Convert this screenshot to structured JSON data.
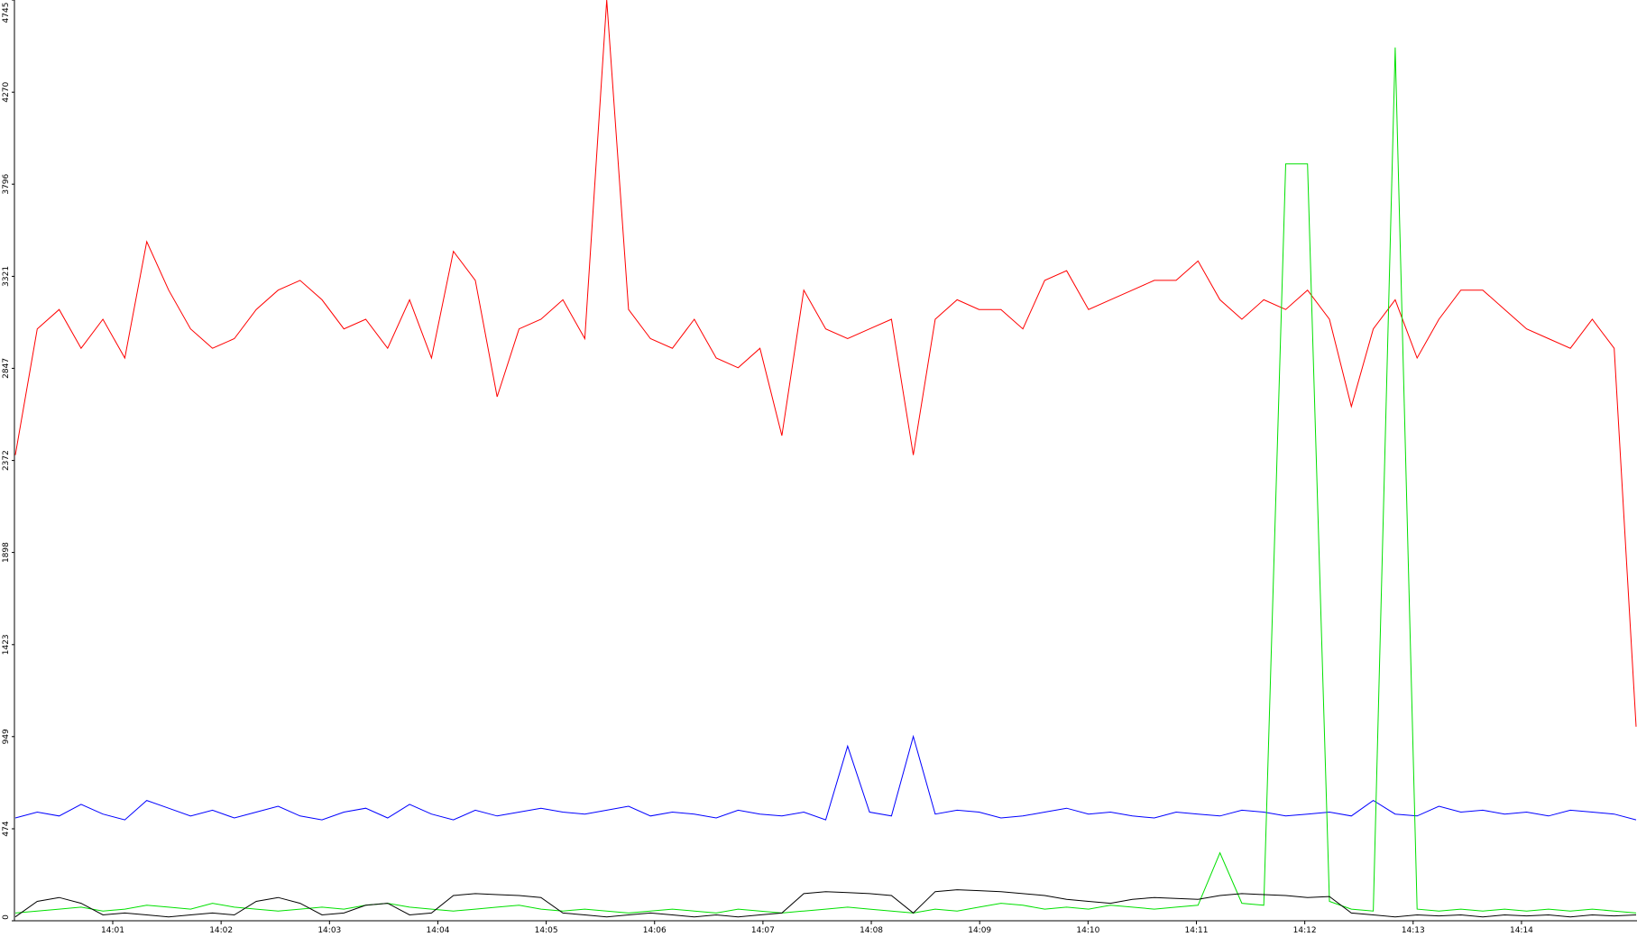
{
  "chart_data": {
    "type": "line",
    "ylim": [
      0,
      4745
    ],
    "yticks": [
      0,
      474,
      949,
      1423,
      1898,
      2372,
      2847,
      3321,
      3796,
      4270,
      4745
    ],
    "xticks": [
      "14:01",
      "14:02",
      "14:03",
      "14:04",
      "14:05",
      "14:06",
      "14:07",
      "14:08",
      "14:09",
      "14:10",
      "14:11",
      "14:12",
      "14:13",
      "14:14"
    ],
    "grid": false,
    "series": [
      {
        "color": "#ff0000",
        "values": [
          2400,
          3050,
          3150,
          2950,
          3100,
          2900,
          3500,
          3250,
          3050,
          2950,
          3000,
          3150,
          3250,
          3300,
          3200,
          3050,
          3100,
          2950,
          3200,
          2900,
          3450,
          3300,
          2700,
          3050,
          3100,
          3200,
          3000,
          4745,
          3150,
          3000,
          2950,
          3100,
          2900,
          2850,
          2950,
          2500,
          3250,
          3050,
          3000,
          3050,
          3100,
          2400,
          3100,
          3200,
          3150,
          3150,
          3050,
          3300,
          3350,
          3150,
          3200,
          3250,
          3300,
          3300,
          3400,
          3200,
          3100,
          3200,
          3150,
          3250,
          3100,
          2650,
          3050,
          3200,
          2900,
          3100,
          3250,
          3250,
          3150,
          3050,
          3000,
          2950,
          3100,
          2950,
          1000
        ]
      },
      {
        "color": "#0000ff",
        "values": [
          530,
          560,
          540,
          600,
          550,
          520,
          620,
          580,
          540,
          570,
          530,
          560,
          590,
          540,
          520,
          560,
          580,
          530,
          600,
          550,
          520,
          570,
          540,
          560,
          580,
          560,
          550,
          570,
          590,
          540,
          560,
          550,
          530,
          570,
          550,
          540,
          560,
          520,
          900,
          560,
          540,
          950,
          550,
          570,
          560,
          530,
          540,
          560,
          580,
          550,
          560,
          540,
          530,
          560,
          550,
          540,
          570,
          560,
          540,
          550,
          560,
          540,
          620,
          550,
          540,
          590,
          560,
          570,
          550,
          560,
          540,
          570,
          560,
          550,
          520
        ]
      },
      {
        "color": "#00e000",
        "values": [
          40,
          50,
          60,
          70,
          50,
          60,
          80,
          70,
          60,
          90,
          70,
          60,
          50,
          60,
          70,
          60,
          80,
          90,
          70,
          60,
          50,
          60,
          70,
          80,
          60,
          50,
          60,
          50,
          40,
          50,
          60,
          50,
          40,
          60,
          50,
          40,
          50,
          60,
          70,
          60,
          50,
          40,
          60,
          50,
          70,
          90,
          80,
          60,
          70,
          60,
          80,
          70,
          60,
          70,
          80,
          350,
          90,
          80,
          3900,
          3900,
          100,
          60,
          50,
          4500,
          60,
          50,
          60,
          50,
          60,
          50,
          60,
          50,
          60,
          50,
          40
        ]
      },
      {
        "color": "#000000",
        "values": [
          20,
          100,
          120,
          90,
          30,
          40,
          30,
          20,
          30,
          40,
          30,
          100,
          120,
          90,
          30,
          40,
          80,
          90,
          30,
          40,
          130,
          140,
          135,
          130,
          120,
          40,
          30,
          20,
          30,
          40,
          30,
          20,
          30,
          20,
          30,
          40,
          140,
          150,
          145,
          140,
          130,
          40,
          150,
          160,
          155,
          150,
          140,
          130,
          110,
          100,
          90,
          110,
          120,
          115,
          110,
          130,
          140,
          135,
          130,
          120,
          125,
          40,
          30,
          20,
          30,
          25,
          30,
          20,
          30,
          25,
          30,
          20,
          30,
          25,
          30
        ]
      }
    ]
  }
}
